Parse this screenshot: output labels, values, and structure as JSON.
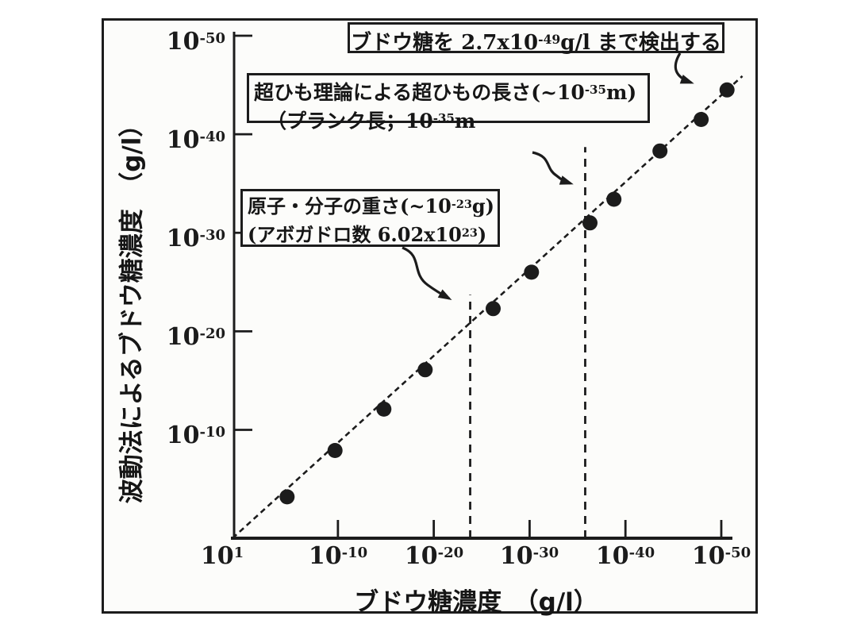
{
  "chart_data": {
    "type": "scatter",
    "title": "",
    "x_axis": {
      "label": "ブドウ糖濃度　（g/l）",
      "scale": "log",
      "tick_exponents": [
        1,
        -10,
        -20,
        -30,
        -40,
        -50
      ]
    },
    "y_axis": {
      "label": "波動法によるブドウ糖濃度　（g/l）",
      "scale": "log",
      "tick_exponents": [
        -10,
        -20,
        -30,
        -40,
        -50
      ]
    },
    "points_log10": [
      [
        -4.7,
        -3.2
      ],
      [
        -9.7,
        -7.9
      ],
      [
        -14.8,
        -12.1
      ],
      [
        -19.1,
        -16.1
      ],
      [
        -26.2,
        -22.3
      ],
      [
        -30.2,
        -26.0
      ],
      [
        -36.3,
        -31.0
      ],
      [
        -38.8,
        -33.4
      ],
      [
        -43.6,
        -38.3
      ],
      [
        -47.9,
        -41.5
      ],
      [
        -50.6,
        -44.5
      ]
    ],
    "fit_line_log10": {
      "style": "dashed",
      "from": [
        1,
        1
      ],
      "to": [
        -52.2,
        -45.9
      ]
    },
    "reference_lines": [
      {
        "id": "atomic-weight-line",
        "x_log10": -23.8,
        "top_y_log10": -23.7,
        "style": "dashed"
      },
      {
        "id": "planck-length-line",
        "x_log10": -35.8,
        "top_y_log10": -38.7,
        "style": "dashed"
      }
    ],
    "annotations": [
      {
        "id": "detection-limit",
        "lines": [
          [
            {
              "t": "ブドウ糖を 2.7x10"
            },
            {
              "sup": "-49"
            },
            {
              "t": "g/l まで検出する"
            }
          ]
        ]
      },
      {
        "id": "superstring-length",
        "lines": [
          [
            {
              "t": "超ひも理論による超ひもの長さ(~10"
            },
            {
              "sup": "-35"
            },
            {
              "t": "m)"
            }
          ],
          [
            {
              "t": "（プランク長；10"
            },
            {
              "sup": "-35"
            },
            {
              "t": "m"
            }
          ]
        ]
      },
      {
        "id": "atomic-weight",
        "lines": [
          [
            {
              "t": "原子・分子の重さ(~10"
            },
            {
              "sup": "-23"
            },
            {
              "t": "g)"
            }
          ],
          [
            {
              "t": "(アボガドロ数 6.02x10"
            },
            {
              "sup": "23"
            },
            {
              "t": ")"
            }
          ]
        ]
      }
    ],
    "colors": {
      "ink": "#1c1c1c",
      "paper": "#fcfcfa"
    }
  }
}
